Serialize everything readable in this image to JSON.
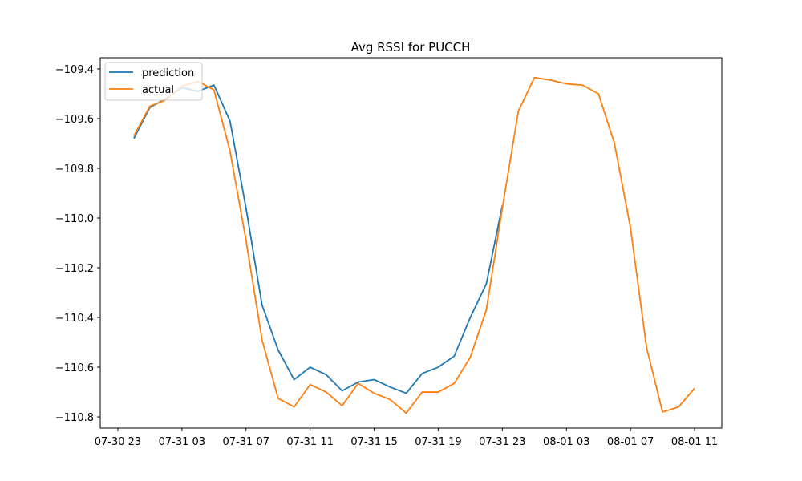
{
  "chart_data": {
    "type": "line",
    "title": "Avg RSSI for PUCCH",
    "xlabel": "",
    "ylabel": "",
    "x_ticks": [
      {
        "label": "07-30 23",
        "hour": 0
      },
      {
        "label": "07-31 03",
        "hour": 4
      },
      {
        "label": "07-31 07",
        "hour": 8
      },
      {
        "label": "07-31 11",
        "hour": 12
      },
      {
        "label": "07-31 15",
        "hour": 16
      },
      {
        "label": "07-31 19",
        "hour": 20
      },
      {
        "label": "07-31 23",
        "hour": 24
      },
      {
        "label": "08-01 03",
        "hour": 28
      },
      {
        "label": "08-01 07",
        "hour": 32
      },
      {
        "label": "08-01 11",
        "hour": 36
      }
    ],
    "y_ticks": [
      -109.4,
      -109.6,
      -109.8,
      -110.0,
      -110.2,
      -110.4,
      -110.6,
      -110.8
    ],
    "y_tick_labels": [
      "−109.4",
      "−109.6",
      "−109.8",
      "−110.0",
      "−110.2",
      "−110.4",
      "−110.6",
      "−110.8"
    ],
    "xlim": [
      -1.1,
      37.7
    ],
    "ylim": [
      -110.845,
      -109.355
    ],
    "grid": false,
    "legend_placement": "upper-left",
    "series": [
      {
        "name": "prediction",
        "color": "#1f77b4",
        "x": [
          1,
          2,
          3,
          4,
          5,
          6,
          7,
          8,
          9,
          10,
          11,
          12,
          13,
          14,
          15,
          16,
          17,
          18,
          19,
          20,
          21,
          22,
          23,
          24
        ],
        "values": [
          -109.68,
          -109.555,
          -109.52,
          -109.475,
          -109.49,
          -109.465,
          -109.61,
          -109.96,
          -110.35,
          -110.53,
          -110.65,
          -110.6,
          -110.63,
          -110.695,
          -110.66,
          -110.65,
          -110.68,
          -110.705,
          -110.625,
          -110.6,
          -110.555,
          -110.4,
          -110.265,
          -109.95
        ]
      },
      {
        "name": "actual",
        "color": "#ff7f0e",
        "x": [
          1,
          2,
          3,
          4,
          5,
          6,
          7,
          8,
          9,
          10,
          11,
          12,
          13,
          14,
          15,
          16,
          17,
          18,
          19,
          20,
          21,
          22,
          23,
          24,
          25,
          26,
          27,
          28,
          29,
          30,
          31,
          32,
          33,
          34,
          35,
          36
        ],
        "values": [
          -109.67,
          -109.55,
          -109.525,
          -109.47,
          -109.45,
          -109.485,
          -109.73,
          -110.09,
          -110.49,
          -110.725,
          -110.76,
          -110.67,
          -110.7,
          -110.755,
          -110.665,
          -110.705,
          -110.73,
          -110.785,
          -110.7,
          -110.7,
          -110.665,
          -110.56,
          -110.37,
          -109.96,
          -109.57,
          -109.435,
          -109.445,
          -109.46,
          -109.465,
          -109.5,
          -109.7,
          -110.04,
          -110.52,
          -110.78,
          -110.76,
          -110.685
        ]
      }
    ]
  }
}
